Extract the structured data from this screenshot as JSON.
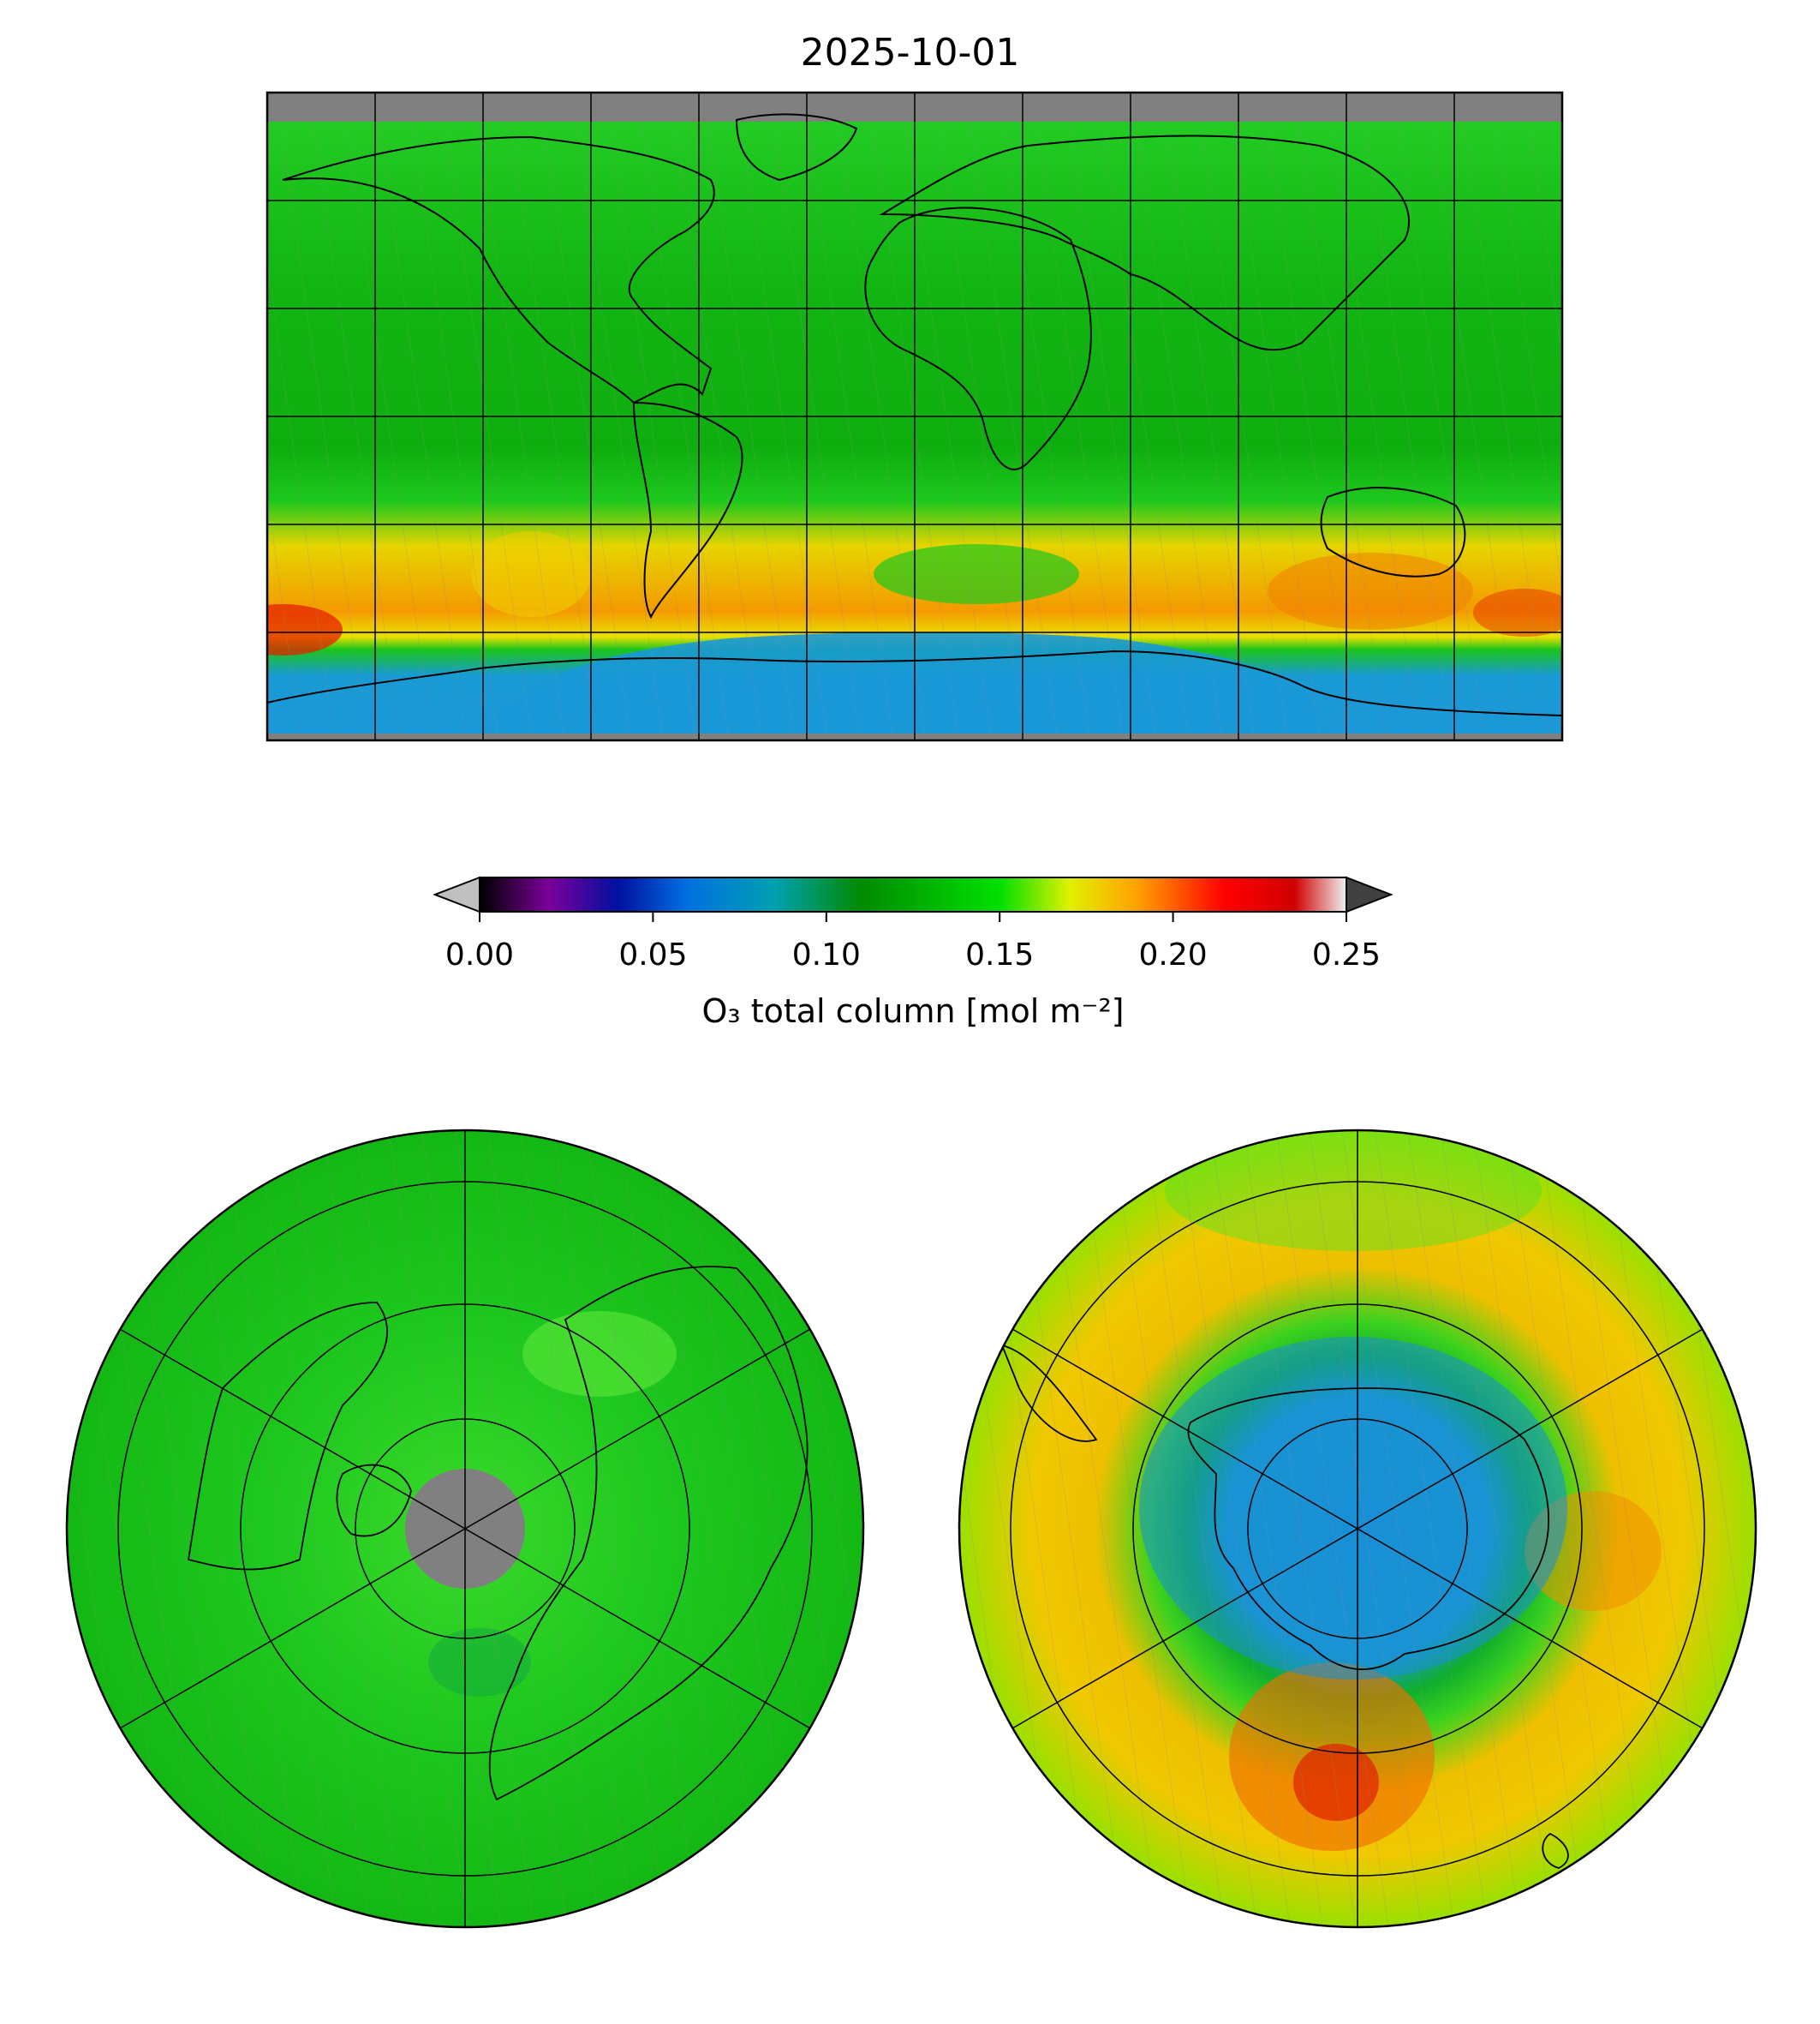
{
  "title": "2025-10-01",
  "colorbar": {
    "label": "O₃ total column [mol m⁻²]",
    "vmin": 0.0,
    "vmax": 0.25,
    "ticks": [
      "0.00",
      "0.05",
      "0.10",
      "0.15",
      "0.20",
      "0.25"
    ],
    "under_color": "#c0c0c0",
    "over_color": "#404040",
    "stops": [
      {
        "v": 0.0,
        "c": "#000000"
      },
      {
        "v": 0.02,
        "c": "#7a0099"
      },
      {
        "v": 0.04,
        "c": "#0010a0"
      },
      {
        "v": 0.06,
        "c": "#0070e0"
      },
      {
        "v": 0.085,
        "c": "#00a0b0"
      },
      {
        "v": 0.11,
        "c": "#008a00"
      },
      {
        "v": 0.15,
        "c": "#00e000"
      },
      {
        "v": 0.17,
        "c": "#e0f000"
      },
      {
        "v": 0.19,
        "c": "#ffa000"
      },
      {
        "v": 0.215,
        "c": "#ff0000"
      },
      {
        "v": 0.235,
        "c": "#d00000"
      },
      {
        "v": 0.25,
        "c": "#f0f0f0"
      }
    ]
  },
  "maps": [
    {
      "id": "global",
      "projection": "equirectangular",
      "missing_color": "#808080"
    },
    {
      "id": "north-polar",
      "projection": "north-polar-stereographic",
      "missing_color": "#808080"
    },
    {
      "id": "south-polar",
      "projection": "south-polar-stereographic",
      "missing_color": "#808080"
    }
  ],
  "colors": {
    "ozone_hole": "#1a8fd6",
    "background_field": "#17c417",
    "high_band": "#f0a000",
    "peak": "#e02000"
  }
}
